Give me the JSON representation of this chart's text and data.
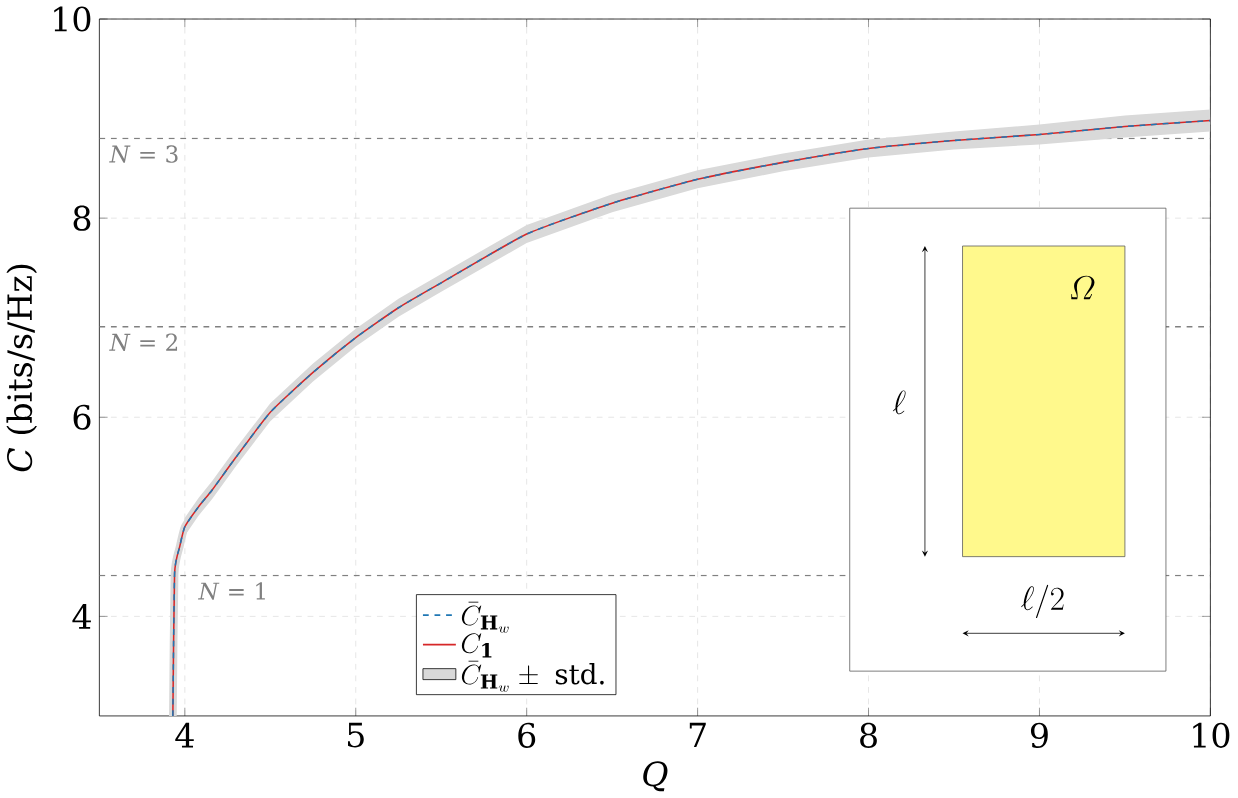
{
  "chart_data": {
    "type": "line",
    "xlabel": "Q",
    "ylabel": "*C* (bits/s/Hz)",
    "x": [
      3.93,
      3.94,
      3.97,
      4.0,
      4.08,
      4.16,
      4.3,
      4.5,
      4.75,
      5.0,
      5.25,
      5.5,
      6.0,
      6.5,
      7.0,
      7.5,
      8.0,
      8.5,
      9.0,
      9.5,
      10.0
    ],
    "series": [
      {
        "name": "\\bar{C}_{\\mathbf{H}_w}",
        "color": "#1f77b4",
        "line_style": "dashed",
        "values": [
          3.0,
          4.43,
          4.7,
          4.9,
          5.1,
          5.27,
          5.6,
          6.05,
          6.45,
          6.8,
          7.1,
          7.35,
          7.84,
          8.15,
          8.39,
          8.56,
          8.7,
          8.78,
          8.84,
          8.92,
          8.98
        ]
      },
      {
        "name": "C_{\\mathbf{1}}",
        "color": "#d62728",
        "line_style": "solid",
        "values": [
          3.0,
          4.43,
          4.7,
          4.9,
          5.1,
          5.27,
          5.6,
          6.05,
          6.45,
          6.8,
          7.1,
          7.35,
          7.84,
          8.15,
          8.39,
          8.56,
          8.7,
          8.78,
          8.84,
          8.92,
          8.98
        ]
      },
      {
        "name": "\\bar{C}_{\\mathbf{H}_w}\\pm\\text{ std.}",
        "color": "#d9d9d9",
        "values": [
          3.0,
          4.43,
          4.7,
          4.9,
          5.1,
          5.27,
          5.6,
          6.05,
          6.45,
          6.8,
          7.1,
          7.35,
          7.84,
          8.15,
          8.39,
          8.56,
          8.7,
          8.78,
          8.84,
          8.92,
          8.98
        ],
        "lower": [
          3.0,
          4.35,
          4.61,
          4.81,
          5.01,
          5.18,
          5.51,
          5.96,
          6.36,
          6.71,
          7.01,
          7.26,
          7.75,
          8.06,
          8.3,
          8.47,
          8.61,
          8.69,
          8.74,
          8.81,
          8.87
        ],
        "upper": [
          3.0,
          4.51,
          4.79,
          4.99,
          5.19,
          5.36,
          5.69,
          6.14,
          6.54,
          6.89,
          7.19,
          7.44,
          7.93,
          8.24,
          8.48,
          8.65,
          8.79,
          8.87,
          8.94,
          9.03,
          9.09
        ]
      }
    ],
    "xlim": [
      3.5,
      10
    ],
    "ylim": [
      3,
      10
    ],
    "xticks": [
      4,
      5,
      6,
      7,
      8,
      9,
      10
    ],
    "yticks": [
      4,
      6,
      8,
      10
    ],
    "grid": true,
    "legend": "bottom",
    "marker": "none",
    "ref_lines": [
      {
        "axis": "y",
        "value": 4.41,
        "color": "#808080",
        "line_style": "dashed"
      },
      {
        "axis": "y",
        "value": 6.91,
        "color": "#808080",
        "line_style": "dashed"
      },
      {
        "axis": "y",
        "value": 8.8,
        "color": "#808080",
        "line_style": "dashed"
      }
    ],
    "annotations": [
      "\\varOmega",
      "\\ell",
      "\\ell/2",
      "*N* = 1",
      "*N* = 2",
      "*N* = 3"
    ]
  }
}
